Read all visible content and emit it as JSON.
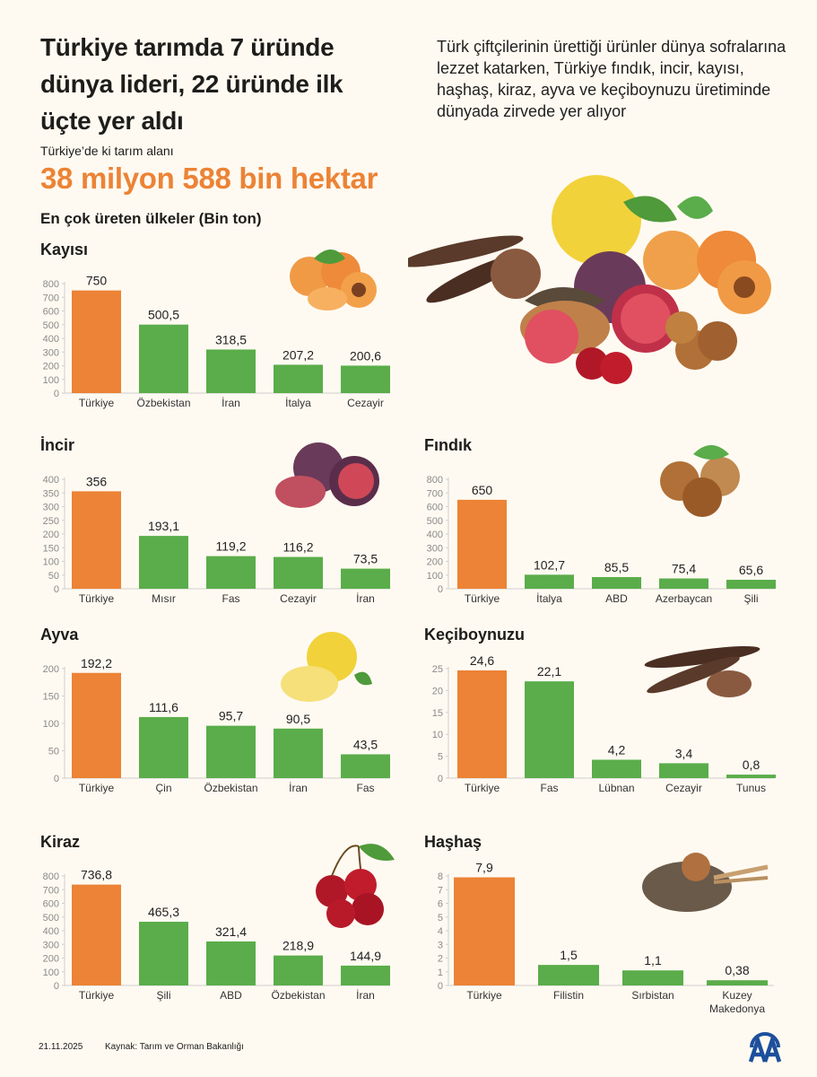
{
  "header": {
    "title": "Türkiye tarımda 7 üründe dünya lideri, 22 üründe ilk üçte yer aldı",
    "intro": "Türk çiftçilerinin ürettiği ürünler dünya sofralarına lezzet katarken, Türkiye fındık, incir, kayısı, haşhaş, kiraz, ayva ve keçiboynuzu üretiminde dünyada zirvede yer alıyor",
    "area_label": "Türkiye’de ki tarım alanı",
    "area_value": "38 milyon 588 bin hektar",
    "section_title": "En çok üreten ülkeler (Bin ton)"
  },
  "colors": {
    "turkiye": "#ec8336",
    "others": "#5aad4a",
    "background": "#fffaf1",
    "accent": "#ec8336"
  },
  "chart_data": [
    {
      "type": "bar",
      "title": "Kayısı",
      "categories": [
        "Türkiye",
        "Özbekistan",
        "İran",
        "İtalya",
        "Cezayir"
      ],
      "values": [
        750,
        500.5,
        318.5,
        207.2,
        200.6
      ],
      "labels": [
        "750",
        "500,5",
        "318,5",
        "207,2",
        "200,6"
      ],
      "ylim": [
        0,
        800
      ],
      "yticks": [
        0,
        100,
        200,
        300,
        400,
        500,
        600,
        700,
        800
      ],
      "grid": false,
      "icon": "apricot-image"
    },
    {
      "type": "bar",
      "title": "İncir",
      "categories": [
        "Türkiye",
        "Mısır",
        "Fas",
        "Cezayir",
        "İran"
      ],
      "values": [
        356,
        193.1,
        119.2,
        116.2,
        73.5
      ],
      "labels": [
        "356",
        "193,1",
        "119,2",
        "116,2",
        "73,5"
      ],
      "ylim": [
        0,
        400
      ],
      "yticks": [
        0,
        50,
        100,
        150,
        200,
        250,
        300,
        350,
        400
      ],
      "grid": false,
      "icon": "fig-image"
    },
    {
      "type": "bar",
      "title": "Fındık",
      "categories": [
        "Türkiye",
        "İtalya",
        "ABD",
        "Azerbaycan",
        "Şili"
      ],
      "values": [
        650,
        102.7,
        85.5,
        75.4,
        65.6
      ],
      "labels": [
        "650",
        "102,7",
        "85,5",
        "75,4",
        "65,6"
      ],
      "ylim": [
        0,
        800
      ],
      "yticks": [
        0,
        100,
        200,
        300,
        400,
        500,
        600,
        700,
        800
      ],
      "grid": false,
      "icon": "hazelnut-image"
    },
    {
      "type": "bar",
      "title": "Ayva",
      "categories": [
        "Türkiye",
        "Çin",
        "Özbekistan",
        "İran",
        "Fas"
      ],
      "values": [
        192.2,
        111.6,
        95.7,
        90.5,
        43.5
      ],
      "labels": [
        "192,2",
        "111,6",
        "95,7",
        "90,5",
        "43,5"
      ],
      "ylim": [
        0,
        200
      ],
      "yticks": [
        0,
        50,
        100,
        150,
        200
      ],
      "grid": false,
      "icon": "quince-image"
    },
    {
      "type": "bar",
      "title": "Keçiboynuzu",
      "categories": [
        "Türkiye",
        "Fas",
        "Lübnan",
        "Cezayir",
        "Tunus"
      ],
      "values": [
        24.6,
        22.1,
        4.2,
        3.4,
        0.8
      ],
      "labels": [
        "24,6",
        "22,1",
        "4,2",
        "3,4",
        "0,8"
      ],
      "ylim": [
        0,
        25
      ],
      "yticks": [
        0,
        5,
        10,
        15,
        20,
        25
      ],
      "grid": false,
      "icon": "carob-image"
    },
    {
      "type": "bar",
      "title": "Kiraz",
      "categories": [
        "Türkiye",
        "Şili",
        "ABD",
        "Özbekistan",
        "İran"
      ],
      "values": [
        736.8,
        465.3,
        321.4,
        218.9,
        144.9
      ],
      "labels": [
        "736,8",
        "465,3",
        "321,4",
        "218,9",
        "144,9"
      ],
      "ylim": [
        0,
        800
      ],
      "yticks": [
        0,
        100,
        200,
        300,
        400,
        500,
        600,
        700,
        800
      ],
      "grid": false,
      "icon": "cherry-image"
    },
    {
      "type": "bar",
      "title": "Haşhaş",
      "categories": [
        "Türkiye",
        "Filistin",
        "Sırbistan",
        "Kuzey Makedonya"
      ],
      "values": [
        7.9,
        1.5,
        1.1,
        0.38
      ],
      "labels": [
        "7,9",
        "1,5",
        "1,1",
        "0,38"
      ],
      "ylim": [
        0,
        8
      ],
      "yticks": [
        0,
        1,
        2,
        3,
        4,
        5,
        6,
        7,
        8
      ],
      "grid": false,
      "icon": "poppy-image"
    }
  ],
  "footer": {
    "date": "21.11.2025",
    "source": "Kaynak: Tarım ve Orman Bakanlığı",
    "logo": "AA"
  }
}
